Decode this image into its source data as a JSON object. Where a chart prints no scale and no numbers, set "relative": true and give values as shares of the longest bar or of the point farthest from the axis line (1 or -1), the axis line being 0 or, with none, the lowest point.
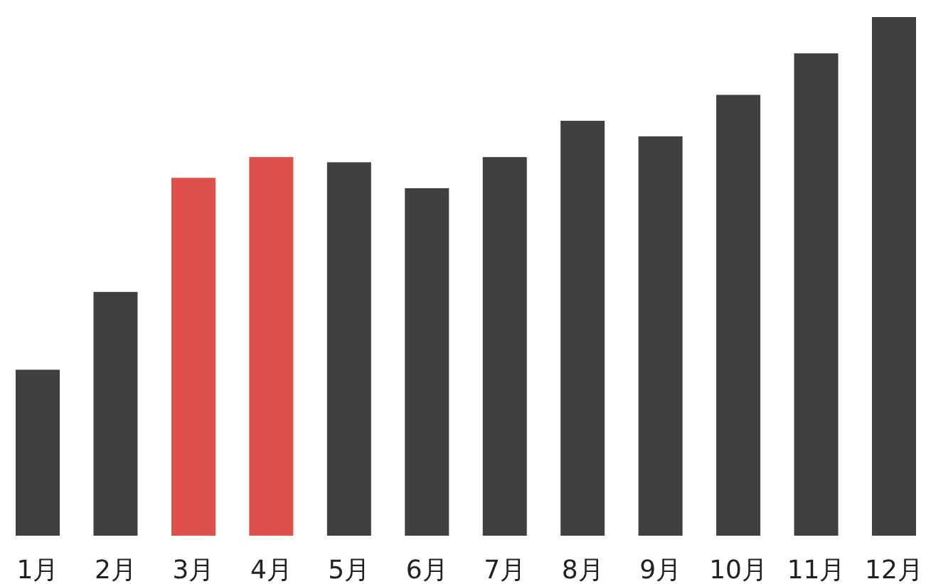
{
  "chart_data": {
    "type": "bar",
    "relative": true,
    "categories": [
      "1月",
      "2月",
      "3月",
      "4月",
      "5月",
      "6月",
      "7月",
      "8月",
      "9月",
      "10月",
      "11月",
      "12月"
    ],
    "values": [
      0.32,
      0.47,
      0.69,
      0.73,
      0.72,
      0.67,
      0.73,
      0.8,
      0.77,
      0.85,
      0.93,
      1
    ],
    "colors": [
      "#404040",
      "#404040",
      "#e0504a",
      "#e0504a",
      "#404040",
      "#404040",
      "#404040",
      "#404040",
      "#404040",
      "#404040",
      "#404040",
      "#404040"
    ]
  }
}
